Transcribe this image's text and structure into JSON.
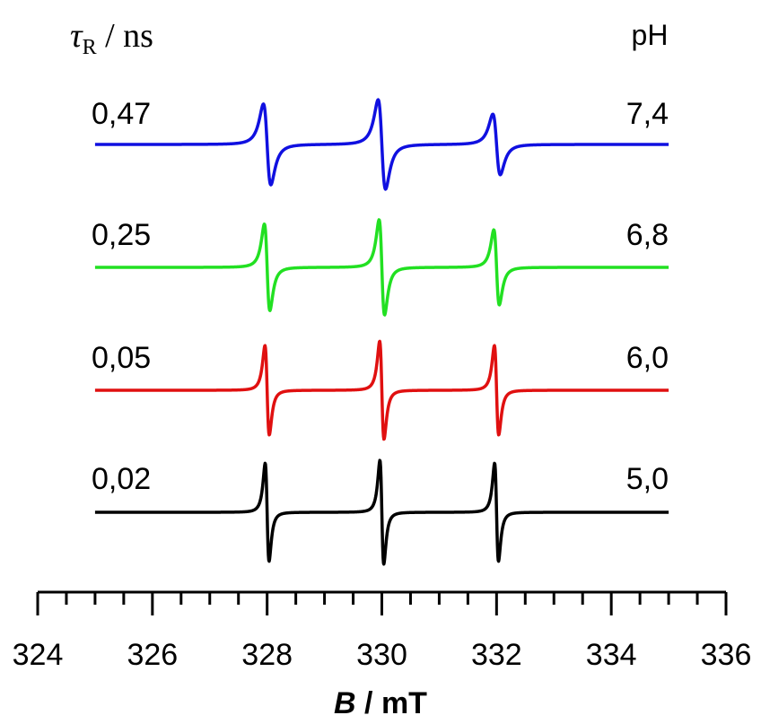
{
  "chart_data": {
    "type": "line",
    "xlabel_italic": "B",
    "xlabel_rest": " / mT",
    "xlim": [
      324,
      336
    ],
    "xticks": [
      "324",
      "326",
      "328",
      "330",
      "332",
      "334",
      "336"
    ],
    "left_header": {
      "tau": "τ",
      "sub": "R",
      "rest": " / ns"
    },
    "right_header": "pH",
    "series": [
      {
        "tau": "0,47",
        "ph": "7,4",
        "color": "#1010e0",
        "width": 0.065,
        "amps": [
          0.56,
          0.62,
          0.42
        ]
      },
      {
        "tau": "0,25",
        "ph": "6,8",
        "color": "#22e022",
        "width": 0.048,
        "amps": [
          0.6,
          0.66,
          0.52
        ]
      },
      {
        "tau": "0,05",
        "ph": "6,0",
        "color": "#e01010",
        "width": 0.038,
        "amps": [
          0.62,
          0.68,
          0.62
        ]
      },
      {
        "tau": "0,02",
        "ph": "5,0",
        "color": "#000000",
        "width": 0.034,
        "amps": [
          0.68,
          0.72,
          0.68
        ]
      }
    ],
    "line_centers": [
      328.0,
      330.0,
      332.0
    ]
  }
}
